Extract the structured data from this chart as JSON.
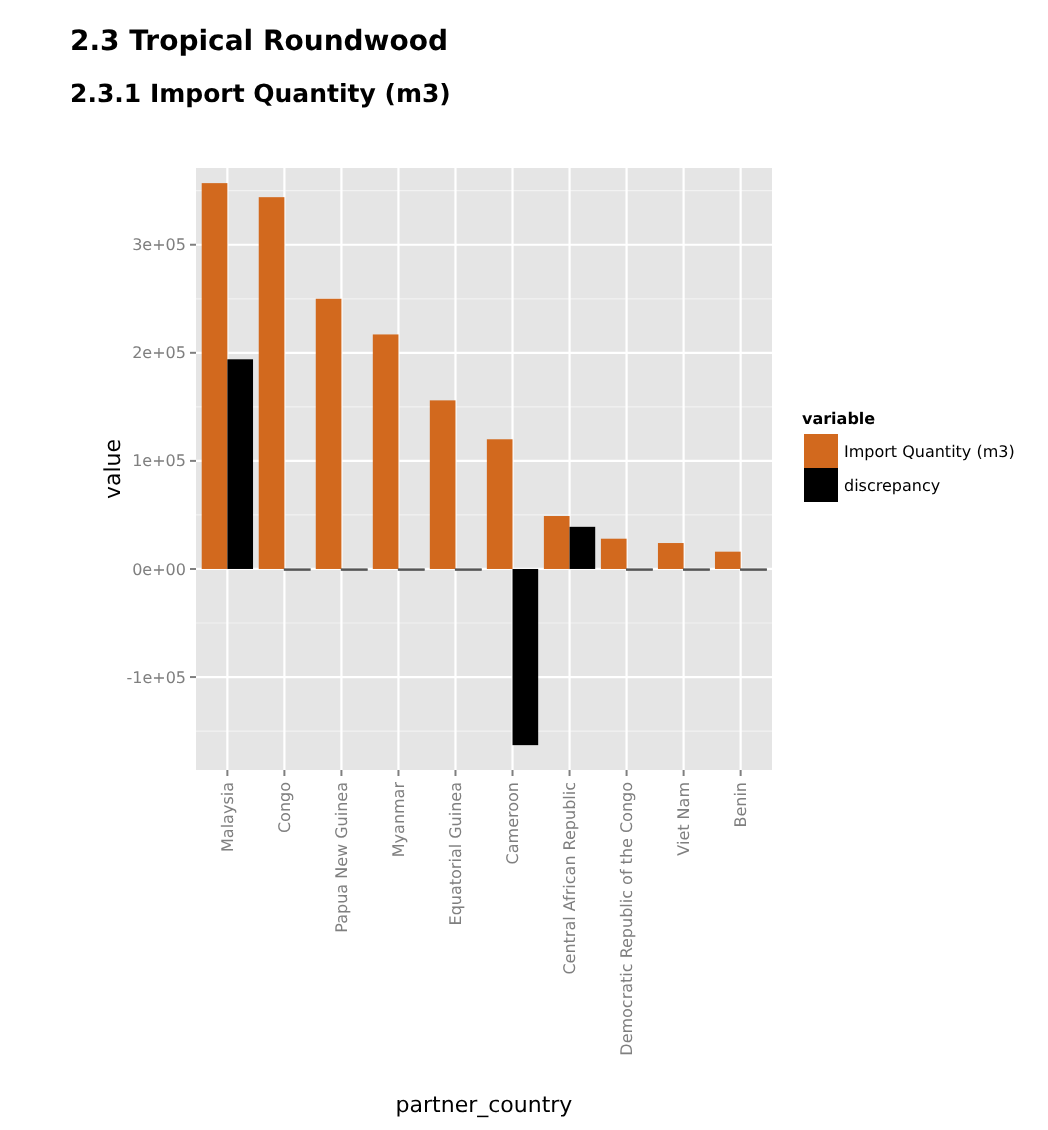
{
  "chart_data": {
    "type": "bar",
    "title": "2.3 Tropical Roundwood",
    "subtitle": "2.3.1 Import Quantity (m3)",
    "xlabel": "partner_country",
    "ylabel": "value",
    "legend_title": "variable",
    "categories": [
      "Malaysia",
      "Congo",
      "Papua New Guinea",
      "Myanmar",
      "Equatorial Guinea",
      "Cameroon",
      "Central African Republic",
      "Democratic Republic of the Congo",
      "Viet Nam",
      "Benin"
    ],
    "series": [
      {
        "name": "Import Quantity (m3)",
        "color": "#d2691e",
        "values": [
          357000,
          344000,
          250000,
          217000,
          156000,
          120000,
          49000,
          28000,
          24000,
          16000
        ]
      },
      {
        "name": "discrepancy",
        "color": "#000000",
        "values": [
          194000,
          0,
          0,
          0,
          0,
          -163000,
          39000,
          0,
          0,
          0
        ]
      }
    ],
    "ylim": [
      -186000,
      371000
    ],
    "yticks": [
      {
        "value": -100000,
        "label": "-1e+05"
      },
      {
        "value": 0,
        "label": "0e+00"
      },
      {
        "value": 100000,
        "label": "1e+05"
      },
      {
        "value": 200000,
        "label": "2e+05"
      },
      {
        "value": 300000,
        "label": "3e+05"
      }
    ],
    "grid": true,
    "legend": "right"
  }
}
